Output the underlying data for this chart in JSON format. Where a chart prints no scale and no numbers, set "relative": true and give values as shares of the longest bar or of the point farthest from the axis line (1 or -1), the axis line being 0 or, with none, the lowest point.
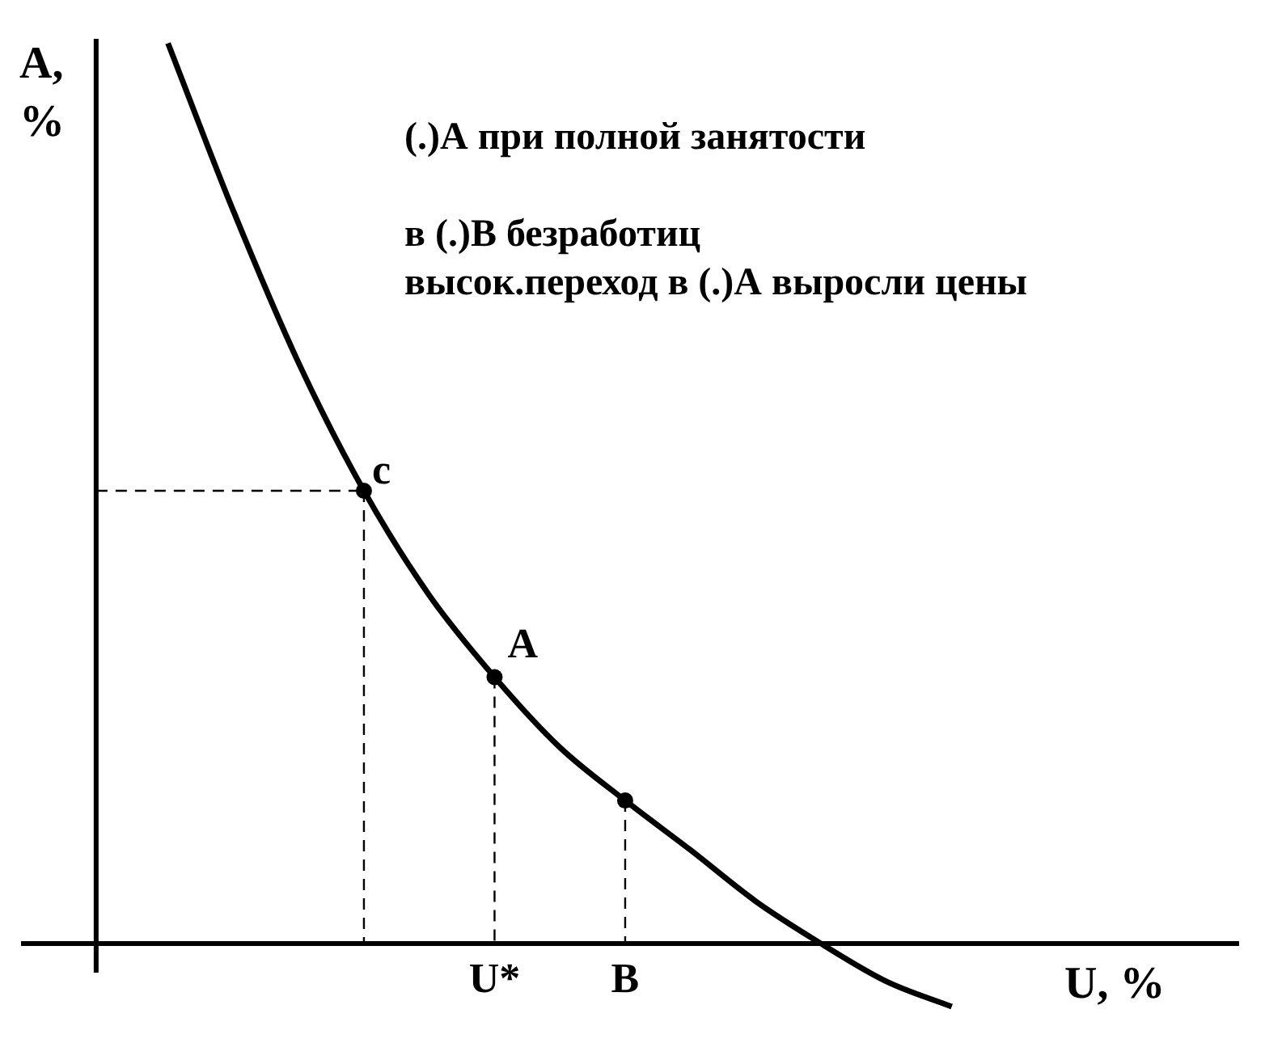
{
  "chart_data": {
    "type": "line",
    "relative": true,
    "xlabel": "U, %",
    "ylabel": "A, %",
    "categories": [
      null,
      null,
      null,
      null,
      null,
      "U*",
      null,
      "B",
      null,
      null,
      null,
      null,
      null
    ],
    "legend": false,
    "annotations": [
      "(.)А при полной занятости",
      "в (.)В безработиц",
      "высок.переход в (.)А выросли цены",
      "c",
      {
        "text": "A",
        "x": "U*",
        "y": 0.296
      }
    ],
    "ref_lines": [
      {
        "axis": "y",
        "value": 0.503,
        "line_style": "dashed",
        "color": "#000000"
      }
    ],
    "series": [
      {
        "color": "#000000",
        "marker": "none",
        "line_style": "solid",
        "values": [
          1,
          0.814,
          0.645,
          0.503,
          0.387,
          0.296,
          0.218,
          0.159,
          0.104,
          0.047,
          0,
          -0.042,
          -0.07
        ]
      },
      {
        "type": "scatter",
        "color": "#000000",
        "marker": "circle",
        "line_style": "dashed",
        "values": [
          null,
          null,
          null,
          0.503,
          null,
          0.296,
          null,
          0.159,
          null,
          null,
          null,
          null,
          null
        ]
      }
    ]
  }
}
